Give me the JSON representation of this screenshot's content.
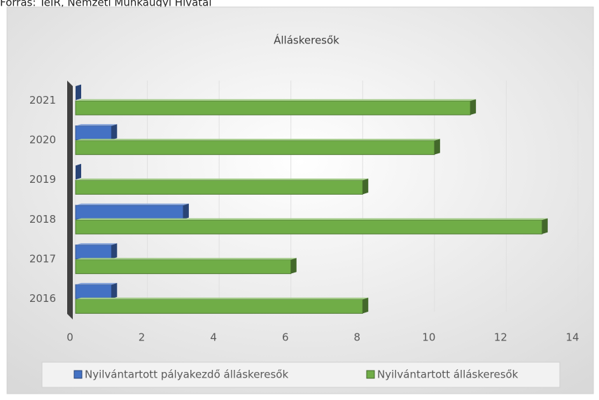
{
  "chart_data": {
    "type": "bar",
    "orientation": "horizontal",
    "source": "Forrás: TeIR, Nemzeti Munkaügyi Hivatal",
    "title": "Álláskeresők",
    "categories": [
      "2016",
      "2017",
      "2018",
      "2019",
      "2020",
      "2021"
    ],
    "series": [
      {
        "name": "Nyilvántartott pályakezdő álláskeresők",
        "color": "#4472c4",
        "values": [
          1,
          1,
          3,
          0,
          1,
          0
        ]
      },
      {
        "name": "Nyilvántartott álláskeresők",
        "color": "#70ad47",
        "values": [
          8,
          6,
          13,
          8,
          10,
          11
        ]
      }
    ],
    "xlim": [
      0,
      14
    ],
    "xticks": [
      0,
      2,
      4,
      6,
      8,
      10,
      12,
      14
    ],
    "grid": true,
    "legend": "bottom"
  }
}
